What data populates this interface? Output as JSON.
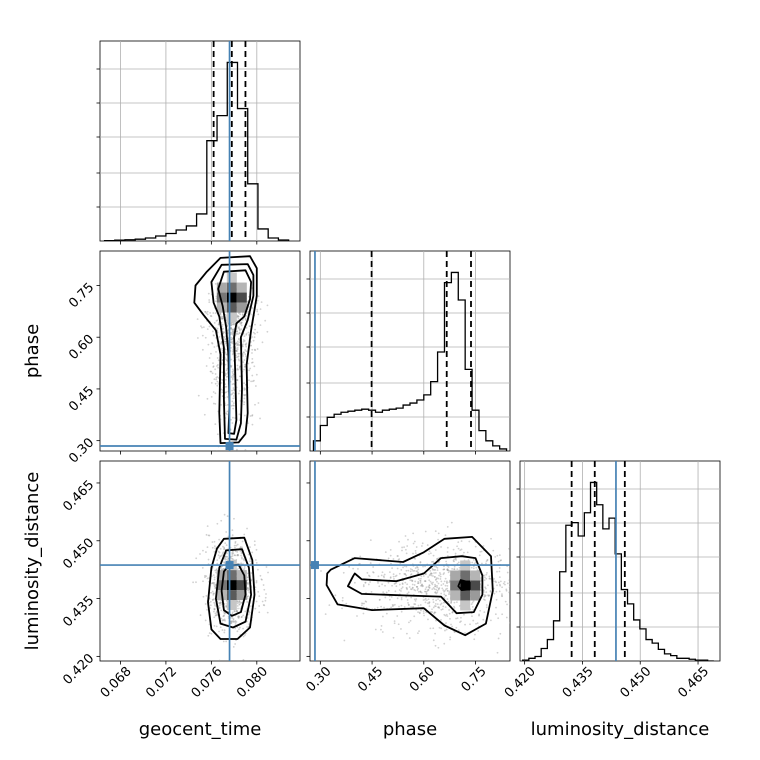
{
  "chart_data": {
    "type": "corner",
    "parameters": [
      {
        "name": "geocent_time",
        "label": "geocent_time",
        "range": [
          0.0662,
          0.0838
        ],
        "ticks": [
          0.068,
          0.072,
          0.076,
          0.08
        ],
        "tick_labels": [
          "0.068",
          "0.072",
          "0.076",
          "0.080"
        ],
        "truth": 0.0776,
        "quantiles": [
          0.0762,
          0.0778,
          0.079
        ]
      },
      {
        "name": "phase",
        "label": "phase",
        "range": [
          0.27,
          0.85
        ],
        "ticks": [
          0.3,
          0.45,
          0.6,
          0.75
        ],
        "tick_labels": [
          "0.30",
          "0.45",
          "0.60",
          "0.75"
        ],
        "truth": 0.2844,
        "quantiles": [
          0.4487,
          0.6665,
          0.7369
        ]
      },
      {
        "name": "luminosity_distance",
        "label": "luminosity_distance",
        "range": [
          0.4188,
          0.4707
        ],
        "ticks": [
          0.42,
          0.435,
          0.45,
          0.465
        ],
        "tick_labels": [
          "0.420",
          "0.435",
          "0.450",
          "0.465"
        ],
        "truth": 0.4437,
        "quantiles": [
          0.4322,
          0.4382,
          0.446
        ]
      }
    ],
    "histograms": [
      {
        "parameter": "geocent_time",
        "bin_edges": [
          0.0666,
          0.0675,
          0.0684,
          0.0693,
          0.0702,
          0.0711,
          0.072,
          0.0729,
          0.0738,
          0.0747,
          0.0756,
          0.0765,
          0.0774,
          0.0783,
          0.0792,
          0.0801,
          0.081,
          0.0819,
          0.0828
        ],
        "counts": [
          0.4,
          0.8,
          1.2,
          1.8,
          3.0,
          5.0,
          7.5,
          11.0,
          15.0,
          27.0,
          100.0,
          125.0,
          178.0,
          132.0,
          57.0,
          12.0,
          3.0,
          1.0
        ]
      },
      {
        "parameter": "phase",
        "bin_edges": [
          0.28,
          0.3,
          0.32,
          0.34,
          0.36,
          0.38,
          0.4,
          0.42,
          0.44,
          0.46,
          0.48,
          0.5,
          0.52,
          0.54,
          0.56,
          0.58,
          0.6,
          0.62,
          0.64,
          0.66,
          0.68,
          0.7,
          0.72,
          0.74,
          0.76,
          0.78,
          0.8,
          0.82,
          0.84
        ],
        "counts": [
          10,
          25,
          33,
          36,
          38,
          39,
          40,
          41,
          40,
          38,
          40,
          41,
          42,
          45,
          47,
          50,
          55,
          68,
          97,
          165,
          175,
          148,
          80,
          40,
          20,
          10,
          5,
          2
        ]
      },
      {
        "parameter": "luminosity_distance",
        "bin_edges": [
          0.4195,
          0.4211,
          0.4227,
          0.4243,
          0.4259,
          0.4275,
          0.4291,
          0.4307,
          0.4323,
          0.4339,
          0.4355,
          0.4371,
          0.4387,
          0.4403,
          0.4419,
          0.4435,
          0.4451,
          0.4467,
          0.4483,
          0.4499,
          0.4515,
          0.4531,
          0.4547,
          0.4563,
          0.4579,
          0.4595,
          0.4611,
          0.4627,
          0.4643,
          0.4659,
          0.4675,
          0.4691
        ],
        "counts": [
          1,
          3,
          5,
          14,
          24,
          45,
          100,
          152,
          155,
          140,
          166,
          200,
          175,
          148,
          160,
          120,
          80,
          64,
          46,
          36,
          24,
          20,
          13,
          8,
          6,
          3,
          3,
          2,
          1,
          1,
          0
        ]
      }
    ],
    "pairs": [
      {
        "x": "geocent_time",
        "y": "phase",
        "peak": [
          0.0778,
          0.715
        ],
        "contours": [
          [
            [
              0.0771,
              0.79
            ],
            [
              0.079,
              0.794
            ],
            [
              0.0795,
              0.76
            ],
            [
              0.0794,
              0.71
            ],
            [
              0.0789,
              0.66
            ],
            [
              0.0782,
              0.64
            ],
            [
              0.078,
              0.6
            ],
            [
              0.0781,
              0.5
            ],
            [
              0.0782,
              0.36
            ],
            [
              0.078,
              0.32
            ],
            [
              0.0775,
              0.322
            ],
            [
              0.0776,
              0.4
            ],
            [
              0.0775,
              0.55
            ],
            [
              0.0773,
              0.63
            ],
            [
              0.077,
              0.69
            ],
            [
              0.0766,
              0.74
            ]
          ],
          [
            [
              0.0769,
              0.81
            ],
            [
              0.0792,
              0.812
            ],
            [
              0.0797,
              0.78
            ],
            [
              0.0797,
              0.72
            ],
            [
              0.0792,
              0.65
            ],
            [
              0.0786,
              0.6
            ],
            [
              0.0787,
              0.45
            ],
            [
              0.0786,
              0.35
            ],
            [
              0.0782,
              0.303
            ],
            [
              0.0772,
              0.305
            ],
            [
              0.0771,
              0.42
            ],
            [
              0.0771,
              0.57
            ],
            [
              0.0767,
              0.66
            ],
            [
              0.0762,
              0.7
            ],
            [
              0.076,
              0.76
            ]
          ],
          [
            [
              0.0768,
              0.83
            ],
            [
              0.0794,
              0.835
            ],
            [
              0.08,
              0.8
            ],
            [
              0.08,
              0.72
            ],
            [
              0.0795,
              0.62
            ],
            [
              0.0791,
              0.52
            ],
            [
              0.0792,
              0.38
            ],
            [
              0.079,
              0.32
            ],
            [
              0.0784,
              0.295
            ],
            [
              0.0768,
              0.293
            ],
            [
              0.0767,
              0.38
            ],
            [
              0.0768,
              0.55
            ],
            [
              0.0764,
              0.62
            ],
            [
              0.0753,
              0.665
            ],
            [
              0.0745,
              0.7
            ],
            [
              0.0746,
              0.75
            ],
            [
              0.0756,
              0.79
            ]
          ]
        ]
      },
      {
        "x": "geocent_time",
        "y": "luminosity_distance",
        "peak": [
          0.0778,
          0.4385
        ],
        "contours": [
          [
            [
              0.0775,
              0.4435
            ],
            [
              0.0784,
              0.4438
            ],
            [
              0.0789,
              0.441
            ],
            [
              0.079,
              0.436
            ],
            [
              0.0786,
              0.4315
            ],
            [
              0.0778,
              0.4305
            ],
            [
              0.0771,
              0.432
            ],
            [
              0.0769,
              0.437
            ],
            [
              0.0771,
              0.442
            ]
          ],
          [
            [
              0.0773,
              0.4475
            ],
            [
              0.0787,
              0.4478
            ],
            [
              0.0793,
              0.443
            ],
            [
              0.0795,
              0.436
            ],
            [
              0.079,
              0.429
            ],
            [
              0.0779,
              0.4275
            ],
            [
              0.0768,
              0.4285
            ],
            [
              0.0764,
              0.435
            ],
            [
              0.0767,
              0.443
            ]
          ],
          [
            [
              0.0771,
              0.4505
            ],
            [
              0.0789,
              0.4508
            ],
            [
              0.0796,
              0.445
            ],
            [
              0.0798,
              0.436
            ],
            [
              0.0794,
              0.4275
            ],
            [
              0.0783,
              0.4245
            ],
            [
              0.0768,
              0.4245
            ],
            [
              0.076,
              0.427
            ],
            [
              0.0757,
              0.434
            ],
            [
              0.076,
              0.443
            ],
            [
              0.0765,
              0.448
            ]
          ]
        ]
      },
      {
        "x": "phase",
        "y": "luminosity_distance",
        "peak": [
          0.72,
          0.4384
        ],
        "contours": [
          [
            [
              0.707,
              0.4398
            ],
            [
              0.733,
              0.4392
            ],
            [
              0.733,
              0.4374
            ],
            [
              0.71,
              0.4372
            ],
            [
              0.7,
              0.4382
            ]
          ],
          [
            [
              0.4,
              0.4415
            ],
            [
              0.42,
              0.44
            ],
            [
              0.52,
              0.4395
            ],
            [
              0.6,
              0.4415
            ],
            [
              0.65,
              0.4455
            ],
            [
              0.71,
              0.446
            ],
            [
              0.75,
              0.4455
            ],
            [
              0.77,
              0.441
            ],
            [
              0.77,
              0.436
            ],
            [
              0.745,
              0.4315
            ],
            [
              0.695,
              0.4312
            ],
            [
              0.65,
              0.4355
            ],
            [
              0.55,
              0.4358
            ],
            [
              0.42,
              0.4362
            ],
            [
              0.38,
              0.4382
            ],
            [
              0.395,
              0.4408
            ]
          ],
          [
            [
              0.33,
              0.4425
            ],
            [
              0.4,
              0.4455
            ],
            [
              0.54,
              0.4445
            ],
            [
              0.6,
              0.447
            ],
            [
              0.66,
              0.4505
            ],
            [
              0.74,
              0.451
            ],
            [
              0.795,
              0.446
            ],
            [
              0.8,
              0.437
            ],
            [
              0.78,
              0.4285
            ],
            [
              0.72,
              0.4255
            ],
            [
              0.66,
              0.428
            ],
            [
              0.6,
              0.4325
            ],
            [
              0.45,
              0.432
            ],
            [
              0.35,
              0.4335
            ],
            [
              0.318,
              0.4385
            ],
            [
              0.32,
              0.4415
            ]
          ]
        ]
      }
    ]
  }
}
